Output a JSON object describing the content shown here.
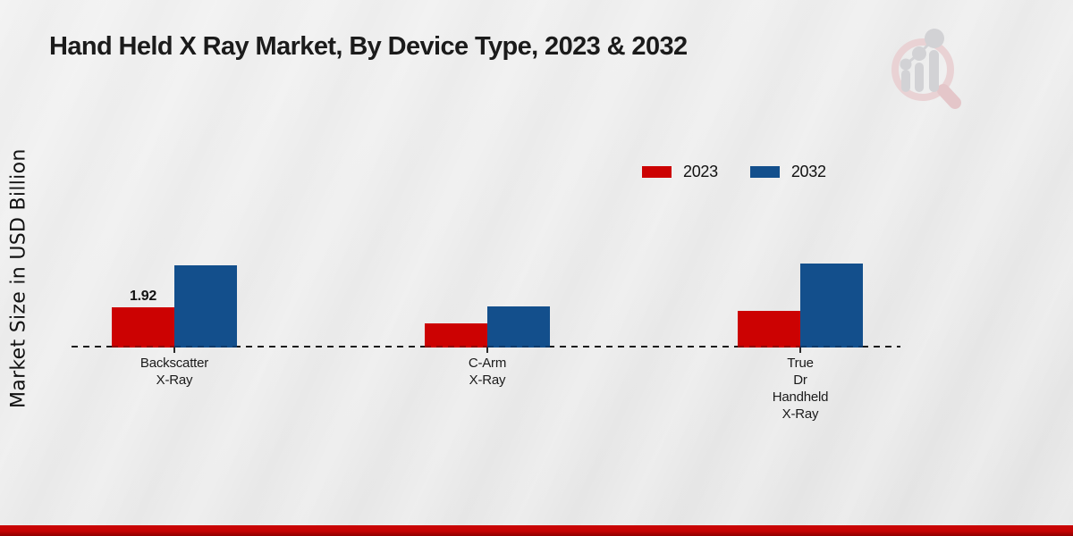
{
  "title": "Hand Held X Ray Market, By Device Type, 2023 & 2032",
  "ylabel": "Market Size in USD Billion",
  "colors": {
    "series_2023": "#CC0202",
    "series_2032": "#134F8C",
    "series_2023_dark": "#8f0000",
    "series_2032_dark": "#0d3a6b",
    "footer_band": "#C40303",
    "baseline": "#1b1b1b"
  },
  "legend": [
    {
      "label": "2023",
      "color": "#CC0202"
    },
    {
      "label": "2032",
      "color": "#134F8C"
    }
  ],
  "watermark_icon": "market-research-magnifier-chart-logo",
  "chart_data": {
    "type": "bar",
    "title": "Hand Held X Ray Market, By Device Type, 2023 & 2032",
    "xlabel": "",
    "ylabel": "Market Size in USD Billion",
    "categories": [
      [
        "Backscatter",
        "X-Ray"
      ],
      [
        "C-Arm",
        "X-Ray"
      ],
      [
        "True",
        "Dr",
        "Handheld",
        "X-Ray"
      ]
    ],
    "series": [
      {
        "name": "2023",
        "color": "#CC0202",
        "dark": "#8f0000",
        "values": [
          1.92,
          1.15,
          1.75
        ]
      },
      {
        "name": "2032",
        "color": "#134F8C",
        "dark": "#0d3a6b",
        "values": [
          3.92,
          1.96,
          4.01
        ]
      }
    ],
    "bar_labels": [
      {
        "series_index": 0,
        "category_index": 0,
        "text": "1.92"
      }
    ],
    "ylim": [
      0,
      4.5
    ],
    "grid": false,
    "baseline_style": "dashed",
    "legend_position": "upper-right"
  }
}
